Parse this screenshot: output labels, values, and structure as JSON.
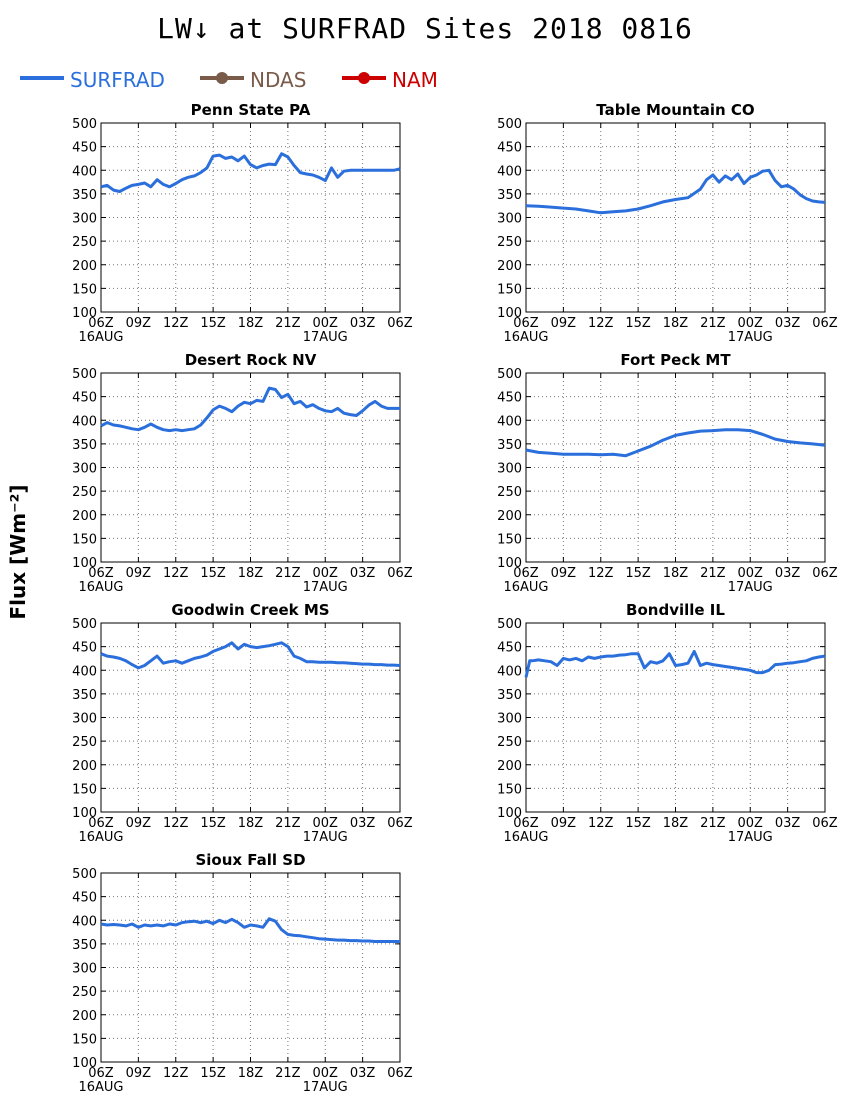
{
  "title": "LW↓ at SURFRAD Sites    2018 0816",
  "ylabel": "Flux [Wm⁻²]",
  "legend": [
    {
      "label": "SURFRAD",
      "color": "#2a6fdb",
      "marker": false
    },
    {
      "label": "NDAS",
      "color": "#7a5a48",
      "marker": true
    },
    {
      "label": "NAM",
      "color": "#cc0000",
      "marker": true
    }
  ],
  "chart_data": {
    "type": "line",
    "x_ticks": [
      "06Z",
      "09Z",
      "12Z",
      "15Z",
      "18Z",
      "21Z",
      "00Z",
      "03Z",
      "06Z"
    ],
    "x_date_labels": [
      {
        "hour": 0,
        "label": "16AUG"
      },
      {
        "hour": 18,
        "label": "17AUG"
      }
    ],
    "xlim": [
      0,
      24
    ],
    "ylim": [
      100,
      500
    ],
    "y_ticks": [
      100,
      150,
      200,
      250,
      300,
      350,
      400,
      450,
      500
    ],
    "grid": true,
    "legend_position": "top-left",
    "panels": [
      {
        "title": "Penn State PA",
        "series": [
          {
            "name": "SURFRAD",
            "x": [
              0,
              0.5,
              1,
              1.5,
              2,
              2.5,
              3,
              3.5,
              4,
              4.5,
              5,
              5.5,
              6,
              6.5,
              7,
              7.5,
              8,
              8.5,
              9,
              9.5,
              10,
              10.5,
              11,
              11.5,
              12,
              12.5,
              13,
              13.5,
              14,
              14.5,
              15,
              15.5,
              16,
              16.5,
              17,
              17.5,
              18,
              18.5,
              19,
              19.5,
              20,
              20.5,
              21,
              21.5,
              22,
              22.5,
              23,
              23.5,
              24
            ],
            "y": [
              365,
              368,
              358,
              355,
              362,
              368,
              370,
              373,
              365,
              380,
              370,
              365,
              372,
              380,
              385,
              388,
              395,
              405,
              430,
              432,
              425,
              428,
              420,
              430,
              412,
              405,
              410,
              413,
              412,
              435,
              428,
              410,
              395,
              392,
              390,
              385,
              378,
              405,
              385,
              398,
              400,
              400,
              400,
              400,
              400,
              400,
              400,
              400,
              403
            ]
          }
        ]
      },
      {
        "title": "Table Mountain CO",
        "series": [
          {
            "name": "SURFRAD",
            "x": [
              0,
              1,
              2,
              3,
              4,
              5,
              6,
              7,
              8,
              9,
              10,
              11,
              12,
              13,
              14,
              14.5,
              15,
              15.5,
              16,
              16.5,
              17,
              17.5,
              18,
              18.5,
              19,
              19.5,
              20,
              20.5,
              21,
              21.5,
              22,
              22.5,
              23,
              23.5,
              24
            ],
            "y": [
              325,
              324,
              322,
              320,
              318,
              314,
              310,
              312,
              314,
              318,
              325,
              333,
              338,
              342,
              360,
              380,
              390,
              375,
              388,
              380,
              392,
              372,
              385,
              390,
              398,
              400,
              378,
              365,
              368,
              360,
              348,
              340,
              335,
              333,
              332
            ]
          }
        ]
      },
      {
        "title": "Desert Rock NV",
        "series": [
          {
            "name": "SURFRAD",
            "x": [
              0,
              0.5,
              1,
              1.5,
              2,
              2.5,
              3,
              3.5,
              4,
              4.5,
              5,
              5.5,
              6,
              6.5,
              7,
              7.5,
              8,
              8.5,
              9,
              9.5,
              10,
              10.5,
              11,
              11.5,
              12,
              12.5,
              13,
              13.5,
              14,
              14.5,
              15,
              15.5,
              16,
              16.5,
              17,
              17.5,
              18,
              18.5,
              19,
              19.5,
              20,
              20.5,
              21,
              21.5,
              22,
              22.5,
              23,
              23.5,
              24
            ],
            "y": [
              388,
              395,
              390,
              388,
              385,
              382,
              380,
              385,
              392,
              385,
              380,
              378,
              380,
              378,
              380,
              382,
              390,
              405,
              422,
              430,
              425,
              418,
              430,
              438,
              435,
              442,
              440,
              468,
              465,
              448,
              455,
              435,
              440,
              428,
              433,
              425,
              420,
              418,
              425,
              415,
              412,
              410,
              420,
              432,
              440,
              430,
              425,
              425,
              425
            ]
          }
        ]
      },
      {
        "title": "Fort Peck MT",
        "series": [
          {
            "name": "SURFRAD",
            "x": [
              0,
              1,
              2,
              3,
              4,
              5,
              6,
              7,
              8,
              9,
              10,
              11,
              12,
              13,
              14,
              15,
              16,
              17,
              18,
              19,
              20,
              21,
              22,
              23,
              24
            ],
            "y": [
              337,
              332,
              330,
              328,
              328,
              328,
              327,
              328,
              325,
              335,
              345,
              358,
              368,
              373,
              377,
              378,
              380,
              380,
              378,
              370,
              360,
              355,
              352,
              350,
              347
            ]
          }
        ]
      },
      {
        "title": "Goodwin Creek MS",
        "series": [
          {
            "name": "SURFRAD",
            "x": [
              0,
              0.5,
              1,
              1.5,
              2,
              2.5,
              3,
              3.5,
              4,
              4.5,
              5,
              5.5,
              6,
              6.5,
              7,
              7.5,
              8,
              8.5,
              9,
              9.5,
              10,
              10.5,
              11,
              11.5,
              12,
              12.5,
              13,
              13.5,
              14,
              14.5,
              15,
              15.5,
              16,
              16.5,
              17,
              17.5,
              18,
              18.5,
              19,
              19.5,
              20,
              20.5,
              21,
              21.5,
              22,
              22.5,
              23,
              23.5,
              24
            ],
            "y": [
              435,
              430,
              428,
              425,
              420,
              412,
              405,
              410,
              420,
              430,
              415,
              418,
              420,
              415,
              420,
              425,
              428,
              432,
              440,
              445,
              450,
              458,
              445,
              455,
              450,
              448,
              450,
              452,
              455,
              458,
              450,
              430,
              425,
              418,
              418,
              417,
              417,
              417,
              416,
              416,
              415,
              414,
              413,
              413,
              412,
              412,
              411,
              411,
              410
            ]
          }
        ]
      },
      {
        "title": "Bondville IL",
        "series": [
          {
            "name": "SURFRAD",
            "x": [
              0,
              0.3,
              0.5,
              1,
              1.5,
              2,
              2.5,
              3,
              3.5,
              4,
              4.5,
              5,
              5.5,
              6,
              6.5,
              7,
              7.5,
              8,
              8.5,
              9,
              9.5,
              10,
              10.5,
              11,
              11.5,
              12,
              12.5,
              13,
              13.5,
              14,
              14.5,
              15,
              15.5,
              16,
              16.5,
              17,
              17.5,
              18,
              18.5,
              19,
              19.5,
              20,
              20.5,
              21,
              21.5,
              22,
              22.5,
              23,
              23.5,
              24
            ],
            "y": [
              385,
              420,
              420,
              422,
              420,
              418,
              410,
              425,
              422,
              425,
              420,
              428,
              425,
              428,
              430,
              430,
              432,
              433,
              435,
              435,
              405,
              418,
              415,
              420,
              435,
              410,
              412,
              415,
              440,
              410,
              415,
              412,
              410,
              408,
              406,
              404,
              402,
              400,
              395,
              395,
              400,
              412,
              413,
              415,
              416,
              418,
              420,
              425,
              428,
              430
            ]
          }
        ]
      },
      {
        "title": "Sioux Fall SD",
        "series": [
          {
            "name": "SURFRAD",
            "x": [
              0,
              0.5,
              1,
              1.5,
              2,
              2.5,
              3,
              3.5,
              4,
              4.5,
              5,
              5.5,
              6,
              6.5,
              7,
              7.5,
              8,
              8.5,
              9,
              9.5,
              10,
              10.5,
              11,
              11.5,
              12,
              12.5,
              13,
              13.5,
              14,
              14.5,
              15,
              15.5,
              16,
              16.5,
              17,
              17.5,
              18,
              18.5,
              19,
              19.5,
              20,
              20.5,
              21,
              21.5,
              22,
              22.5,
              23,
              23.5,
              24
            ],
            "y": [
              392,
              390,
              391,
              390,
              388,
              392,
              385,
              390,
              388,
              390,
              388,
              392,
              390,
              395,
              397,
              398,
              395,
              398,
              393,
              400,
              395,
              402,
              395,
              385,
              390,
              388,
              385,
              403,
              398,
              380,
              370,
              368,
              367,
              365,
              363,
              361,
              360,
              359,
              358,
              358,
              357,
              357,
              356,
              356,
              355,
              355,
              355,
              355,
              355
            ]
          }
        ]
      }
    ]
  }
}
